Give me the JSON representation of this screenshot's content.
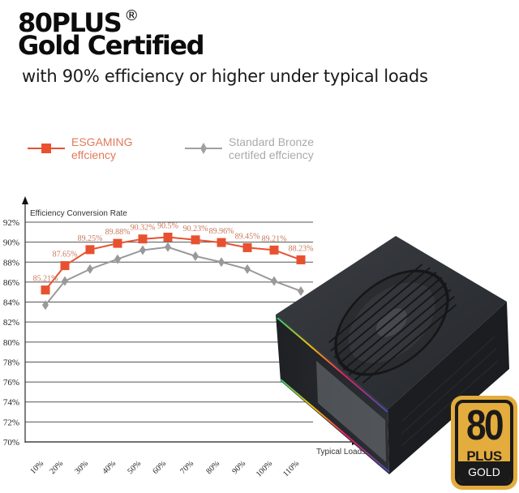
{
  "header": {
    "title_line1": "80PLUS",
    "registered_mark": "®",
    "title_line2": "Gold Certified",
    "subtitle": "with 90% efficiency or higher under typical loads"
  },
  "legend": {
    "items": [
      {
        "line1": "ESGAMING",
        "line2": "effciency",
        "color": "#e8512f",
        "marker": "square"
      },
      {
        "line1": "Standard Bronze",
        "line2": "certifed effciency",
        "color": "#999999",
        "marker": "diamond"
      }
    ]
  },
  "badge": {
    "number": "80",
    "plus": "PLUS",
    "tier": "GOLD",
    "gold_color": "#e3ac3c",
    "dark_color": "#1a1a1a"
  },
  "product": {
    "label": "ESGAMING",
    "alt": "power-supply-unit"
  },
  "chart_data": {
    "type": "line",
    "title": "Efficiency Conversion Rate",
    "xlabel": "Typical Loads",
    "ylabel": "Efficiency Conversion Rate",
    "categories": [
      "10%",
      "20%",
      "30%",
      "40%",
      "50%",
      "60%",
      "70%",
      "80%",
      "90%",
      "100%",
      "110%"
    ],
    "yticks": [
      "70%",
      "72%",
      "74%",
      "76%",
      "78%",
      "80%",
      "82%",
      "84%",
      "86%",
      "88%",
      "90%",
      "92%"
    ],
    "ylim": [
      70,
      92
    ],
    "grid": true,
    "legend_position": "top",
    "series": [
      {
        "name": "ESGAMING effciency",
        "color": "#e8512f",
        "values": [
          85.21,
          87.65,
          89.25,
          89.88,
          90.32,
          90.5,
          90.23,
          89.96,
          89.45,
          89.21,
          88.23
        ],
        "labels": [
          "85.21%",
          "87.65%",
          "89.25%",
          "89.88%",
          "90.32%",
          "90.5%",
          "90.23%",
          "89.96%",
          "89.45%",
          "89.21%",
          "88.23%"
        ]
      },
      {
        "name": "Standard Bronze certifed effciency",
        "color": "#999999",
        "values": [
          83.7,
          86.1,
          87.3,
          88.3,
          89.2,
          89.5,
          88.6,
          88.0,
          87.3,
          86.1,
          85.1
        ]
      }
    ]
  }
}
